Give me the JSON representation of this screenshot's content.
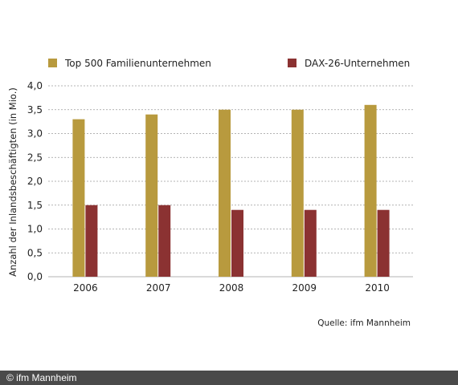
{
  "chart_data": {
    "type": "bar",
    "categories": [
      "2006",
      "2007",
      "2008",
      "2009",
      "2010"
    ],
    "series": [
      {
        "name": "Top 500 Familienunternehmen",
        "values": [
          3.3,
          3.4,
          3.5,
          3.5,
          3.6
        ],
        "color": "#b89a3e"
      },
      {
        "name": "DAX-26-Unternehmen",
        "values": [
          1.5,
          1.5,
          1.4,
          1.4,
          1.4
        ],
        "color": "#8b3232"
      }
    ],
    "ylabel": "Anzahl der Inlandsbeschäftigten (in Mio.)",
    "ylim": [
      0,
      4
    ],
    "yticks": [
      "0,0",
      "0,5",
      "1,0",
      "1,5",
      "2,0",
      "2,5",
      "3,0",
      "3,5",
      "4,0"
    ],
    "grid": true,
    "legend": "top",
    "source": "Quelle: ifm Mannheim"
  },
  "footer": {
    "copyright": "© ifm Mannheim"
  }
}
